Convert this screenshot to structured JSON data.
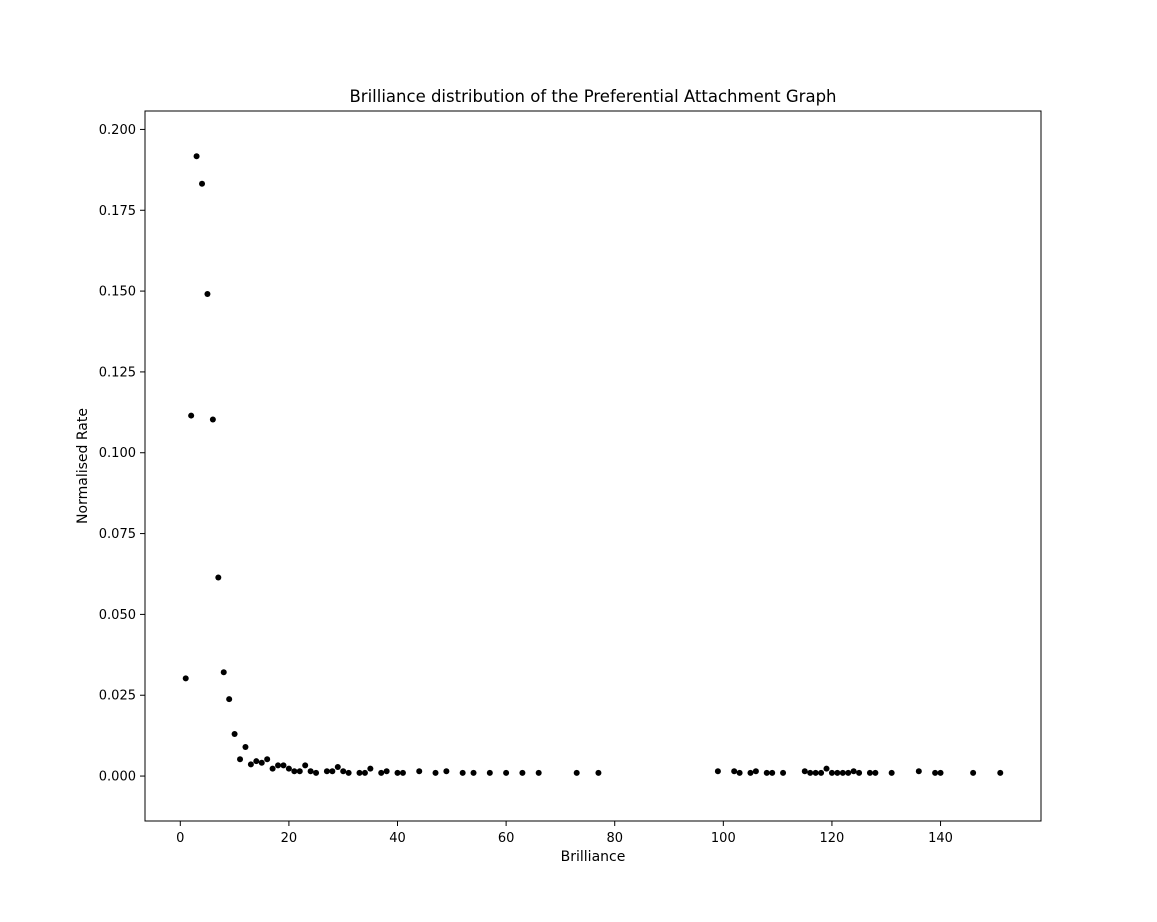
{
  "chart_data": {
    "type": "scatter",
    "title": "Brilliance distribution of the Preferential Attachment Graph",
    "xlabel": "Brilliance",
    "ylabel": "Normalised Rate",
    "xlim": [
      -6.5,
      158.5
    ],
    "ylim": [
      -0.0139,
      0.2057
    ],
    "xticks": [
      0,
      20,
      40,
      60,
      80,
      100,
      120,
      140
    ],
    "yticks": [
      0.0,
      0.025,
      0.05,
      0.075,
      0.1,
      0.125,
      0.15,
      0.175,
      0.2
    ],
    "ytick_labels": [
      "0.000",
      "0.025",
      "0.050",
      "0.075",
      "0.100",
      "0.125",
      "0.150",
      "0.175",
      "0.200"
    ],
    "grid": false,
    "legend": false,
    "marker_color": "#000000",
    "points": [
      [
        1,
        0.0302
      ],
      [
        2,
        0.1115
      ],
      [
        3,
        0.1917
      ],
      [
        4,
        0.1832
      ],
      [
        5,
        0.1491
      ],
      [
        6,
        0.1103
      ],
      [
        7,
        0.0614
      ],
      [
        8,
        0.0321
      ],
      [
        9,
        0.0238
      ],
      [
        10,
        0.013
      ],
      [
        11,
        0.0052
      ],
      [
        12,
        0.009
      ],
      [
        13,
        0.0036
      ],
      [
        14,
        0.0046
      ],
      [
        15,
        0.0041
      ],
      [
        16,
        0.0052
      ],
      [
        17,
        0.0023
      ],
      [
        18,
        0.0033
      ],
      [
        19,
        0.0033
      ],
      [
        20,
        0.0023
      ],
      [
        21,
        0.0015
      ],
      [
        22,
        0.0015
      ],
      [
        23,
        0.0033
      ],
      [
        24,
        0.0015
      ],
      [
        25,
        0.001
      ],
      [
        27,
        0.0015
      ],
      [
        28,
        0.0015
      ],
      [
        29,
        0.0028
      ],
      [
        30,
        0.0015
      ],
      [
        31,
        0.001
      ],
      [
        33,
        0.001
      ],
      [
        34,
        0.001
      ],
      [
        35,
        0.0023
      ],
      [
        37,
        0.001
      ],
      [
        38,
        0.0015
      ],
      [
        40,
        0.001
      ],
      [
        41,
        0.001
      ],
      [
        44,
        0.0015
      ],
      [
        47,
        0.001
      ],
      [
        49,
        0.0015
      ],
      [
        52,
        0.001
      ],
      [
        54,
        0.001
      ],
      [
        57,
        0.001
      ],
      [
        60,
        0.001
      ],
      [
        63,
        0.001
      ],
      [
        66,
        0.001
      ],
      [
        73,
        0.001
      ],
      [
        77,
        0.001
      ],
      [
        99,
        0.0015
      ],
      [
        102,
        0.0015
      ],
      [
        103,
        0.001
      ],
      [
        105,
        0.001
      ],
      [
        106,
        0.0015
      ],
      [
        108,
        0.001
      ],
      [
        109,
        0.001
      ],
      [
        111,
        0.001
      ],
      [
        115,
        0.0015
      ],
      [
        116,
        0.001
      ],
      [
        117,
        0.001
      ],
      [
        118,
        0.001
      ],
      [
        119,
        0.0023
      ],
      [
        120,
        0.001
      ],
      [
        121,
        0.001
      ],
      [
        122,
        0.001
      ],
      [
        123,
        0.001
      ],
      [
        124,
        0.0015
      ],
      [
        125,
        0.001
      ],
      [
        127,
        0.001
      ],
      [
        128,
        0.001
      ],
      [
        131,
        0.001
      ],
      [
        136,
        0.0015
      ],
      [
        139,
        0.001
      ],
      [
        140,
        0.001
      ],
      [
        146,
        0.001
      ],
      [
        151,
        0.001
      ]
    ]
  }
}
